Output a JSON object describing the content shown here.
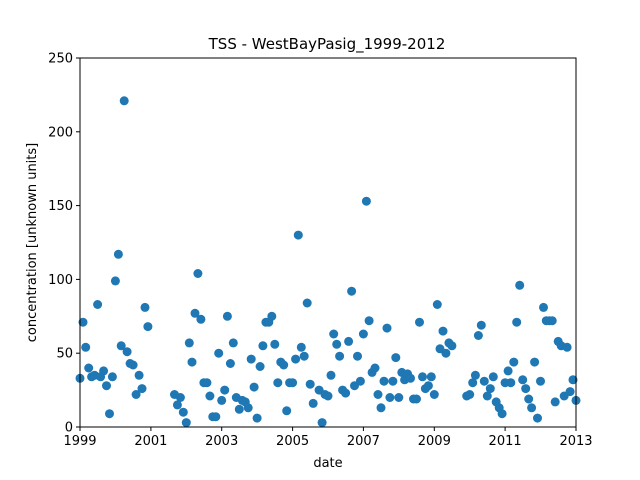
{
  "chart_data": {
    "type": "scatter",
    "title": "TSS - WestBayPasig_1999-2012",
    "xlabel": "date",
    "ylabel": "concentration [unknown units]",
    "xlim": [
      "1999-01-01",
      "2013-01-01"
    ],
    "ylim": [
      0,
      250
    ],
    "x_ticks": [
      "1999",
      "2001",
      "2003",
      "2005",
      "2007",
      "2009",
      "2011",
      "2013"
    ],
    "y_ticks": [
      0,
      50,
      100,
      150,
      200,
      250
    ],
    "grid": false,
    "color": "#1f77b4",
    "series": [
      {
        "points": [
          [
            "1999-01-01",
            33
          ],
          [
            "1999-02-01",
            71
          ],
          [
            "1999-03-01",
            54
          ],
          [
            "1999-04-01",
            40
          ],
          [
            "1999-05-01",
            34
          ],
          [
            "1999-06-01",
            35
          ],
          [
            "1999-07-01",
            83
          ],
          [
            "1999-08-01",
            34
          ],
          [
            "1999-09-01",
            38
          ],
          [
            "1999-10-01",
            28
          ],
          [
            "1999-11-01",
            9
          ],
          [
            "1999-12-01",
            34
          ],
          [
            "2000-01-01",
            99
          ],
          [
            "2000-02-01",
            117
          ],
          [
            "2000-03-01",
            55
          ],
          [
            "2000-04-01",
            221
          ],
          [
            "2000-05-01",
            51
          ],
          [
            "2000-06-01",
            43
          ],
          [
            "2000-07-01",
            42
          ],
          [
            "2000-08-01",
            22
          ],
          [
            "2000-09-01",
            35
          ],
          [
            "2000-10-01",
            26
          ],
          [
            "2000-11-01",
            81
          ],
          [
            "2000-12-01",
            68
          ],
          [
            "2001-09-01",
            22
          ],
          [
            "2001-10-01",
            15
          ],
          [
            "2001-11-01",
            20
          ],
          [
            "2001-12-01",
            10
          ],
          [
            "2002-01-01",
            3
          ],
          [
            "2002-02-01",
            57
          ],
          [
            "2002-03-01",
            44
          ],
          [
            "2002-04-01",
            77
          ],
          [
            "2002-05-01",
            104
          ],
          [
            "2002-06-01",
            73
          ],
          [
            "2002-07-01",
            30
          ],
          [
            "2002-08-01",
            30
          ],
          [
            "2002-09-01",
            21
          ],
          [
            "2002-10-01",
            7
          ],
          [
            "2002-11-01",
            7
          ],
          [
            "2002-12-01",
            50
          ],
          [
            "2003-01-01",
            18
          ],
          [
            "2003-02-01",
            25
          ],
          [
            "2003-03-01",
            75
          ],
          [
            "2003-04-01",
            43
          ],
          [
            "2003-05-01",
            57
          ],
          [
            "2003-06-01",
            20
          ],
          [
            "2003-07-01",
            12
          ],
          [
            "2003-08-01",
            18
          ],
          [
            "2003-09-01",
            17
          ],
          [
            "2003-10-01",
            13
          ],
          [
            "2003-11-01",
            46
          ],
          [
            "2003-12-01",
            27
          ],
          [
            "2004-01-01",
            6
          ],
          [
            "2004-02-01",
            41
          ],
          [
            "2004-03-01",
            55
          ],
          [
            "2004-04-01",
            71
          ],
          [
            "2004-05-01",
            71
          ],
          [
            "2004-06-01",
            75
          ],
          [
            "2004-07-01",
            56
          ],
          [
            "2004-08-01",
            30
          ],
          [
            "2004-09-01",
            44
          ],
          [
            "2004-10-01",
            42
          ],
          [
            "2004-11-01",
            11
          ],
          [
            "2004-12-01",
            30
          ],
          [
            "2005-01-01",
            30
          ],
          [
            "2005-02-01",
            46
          ],
          [
            "2005-03-01",
            130
          ],
          [
            "2005-04-01",
            54
          ],
          [
            "2005-05-01",
            48
          ],
          [
            "2005-06-01",
            84
          ],
          [
            "2005-07-01",
            29
          ],
          [
            "2005-08-01",
            16
          ],
          [
            "2005-10-01",
            25
          ],
          [
            "2005-11-01",
            3
          ],
          [
            "2005-12-01",
            22
          ],
          [
            "2006-01-01",
            21
          ],
          [
            "2006-02-01",
            35
          ],
          [
            "2006-03-01",
            63
          ],
          [
            "2006-04-01",
            56
          ],
          [
            "2006-05-01",
            48
          ],
          [
            "2006-06-01",
            25
          ],
          [
            "2006-07-01",
            23
          ],
          [
            "2006-08-01",
            58
          ],
          [
            "2006-09-01",
            92
          ],
          [
            "2006-10-01",
            28
          ],
          [
            "2006-11-01",
            48
          ],
          [
            "2006-12-01",
            31
          ],
          [
            "2007-01-01",
            63
          ],
          [
            "2007-02-01",
            153
          ],
          [
            "2007-03-01",
            72
          ],
          [
            "2007-04-01",
            37
          ],
          [
            "2007-05-01",
            40
          ],
          [
            "2007-06-01",
            22
          ],
          [
            "2007-07-01",
            13
          ],
          [
            "2007-08-01",
            31
          ],
          [
            "2007-09-01",
            67
          ],
          [
            "2007-10-01",
            20
          ],
          [
            "2007-11-01",
            31
          ],
          [
            "2007-12-01",
            47
          ],
          [
            "2008-01-01",
            20
          ],
          [
            "2008-02-01",
            37
          ],
          [
            "2008-03-01",
            32
          ],
          [
            "2008-04-01",
            36
          ],
          [
            "2008-05-01",
            33
          ],
          [
            "2008-06-01",
            19
          ],
          [
            "2008-07-01",
            19
          ],
          [
            "2008-08-01",
            71
          ],
          [
            "2008-09-01",
            34
          ],
          [
            "2008-10-01",
            26
          ],
          [
            "2008-11-01",
            28
          ],
          [
            "2008-12-01",
            34
          ],
          [
            "2009-01-01",
            22
          ],
          [
            "2009-02-01",
            83
          ],
          [
            "2009-03-01",
            53
          ],
          [
            "2009-04-01",
            65
          ],
          [
            "2009-05-01",
            50
          ],
          [
            "2009-06-01",
            57
          ],
          [
            "2009-07-01",
            55
          ],
          [
            "2009-12-01",
            21
          ],
          [
            "2010-01-01",
            22
          ],
          [
            "2010-02-01",
            30
          ],
          [
            "2010-03-01",
            35
          ],
          [
            "2010-04-01",
            62
          ],
          [
            "2010-05-01",
            69
          ],
          [
            "2010-06-01",
            31
          ],
          [
            "2010-07-01",
            21
          ],
          [
            "2010-08-01",
            26
          ],
          [
            "2010-09-01",
            34
          ],
          [
            "2010-10-01",
            17
          ],
          [
            "2010-11-01",
            13
          ],
          [
            "2010-12-01",
            9
          ],
          [
            "2011-01-01",
            30
          ],
          [
            "2011-02-01",
            38
          ],
          [
            "2011-03-01",
            30
          ],
          [
            "2011-04-01",
            44
          ],
          [
            "2011-05-01",
            71
          ],
          [
            "2011-06-01",
            96
          ],
          [
            "2011-07-01",
            32
          ],
          [
            "2011-08-01",
            26
          ],
          [
            "2011-09-01",
            19
          ],
          [
            "2011-10-01",
            13
          ],
          [
            "2011-11-01",
            44
          ],
          [
            "2011-12-01",
            6
          ],
          [
            "2012-01-01",
            31
          ],
          [
            "2012-02-01",
            81
          ],
          [
            "2012-03-01",
            72
          ],
          [
            "2012-04-01",
            72
          ],
          [
            "2012-05-01",
            72
          ],
          [
            "2012-06-01",
            17
          ],
          [
            "2012-07-01",
            58
          ],
          [
            "2012-08-01",
            55
          ],
          [
            "2012-09-01",
            21
          ],
          [
            "2012-10-01",
            54
          ],
          [
            "2012-11-01",
            24
          ],
          [
            "2012-12-01",
            32
          ],
          [
            "2013-01-01",
            18
          ]
        ]
      }
    ]
  }
}
